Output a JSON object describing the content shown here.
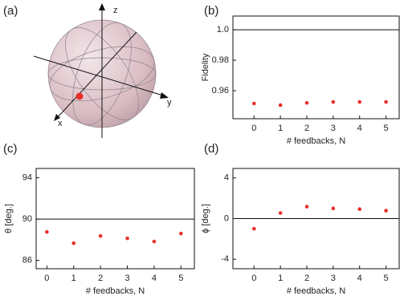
{
  "chart_data": [
    {
      "type": "bloch",
      "label": "(a)",
      "axis_labels": {
        "x": "x",
        "y": "y",
        "z": "z"
      }
    },
    {
      "type": "scatter",
      "label": "(b)",
      "ylabel": "Fidelity",
      "xlabel": "# feedbacks, N",
      "x": [
        0,
        1,
        2,
        3,
        4,
        5
      ],
      "values": [
        0.9516,
        0.9505,
        0.952,
        0.9526,
        0.9526,
        0.9526
      ],
      "color": "#e8302a",
      "xlim": [
        -0.8,
        5.5
      ],
      "ylim": [
        0.9416,
        1.009
      ],
      "xticks": [
        0,
        1,
        2,
        3,
        4,
        5
      ],
      "yticks": [
        0.96,
        0.98,
        {
          "value": 1,
          "label": "1.0"
        }
      ],
      "hline": 1
    },
    {
      "type": "scatter",
      "label": "(c)",
      "ylabel": "θ [deg.]",
      "xlabel": "# feedbacks, N",
      "x": [
        0,
        1,
        2,
        3,
        4,
        5
      ],
      "values": [
        88.76,
        87.67,
        88.37,
        88.14,
        87.83,
        88.6
      ],
      "color": "#e8302a",
      "xlim": [
        -0.4,
        5.5
      ],
      "ylim": [
        85.2,
        94.9
      ],
      "xticks": [
        0,
        1,
        2,
        3,
        4,
        5
      ],
      "yticks": [
        86,
        90,
        94
      ],
      "hline": 90
    },
    {
      "type": "scatter",
      "label": "(d)",
      "ylabel": "ϕ [deg.]",
      "xlabel": "# feedbacks, N",
      "x": [
        0,
        1,
        2,
        3,
        4,
        5
      ],
      "values": [
        -1.0,
        0.55,
        1.17,
        1.0,
        0.93,
        0.78
      ],
      "color": "#e8302a",
      "xlim": [
        -0.8,
        5.5
      ],
      "ylim": [
        -4.93,
        4.93
      ],
      "xticks": [
        0,
        1,
        2,
        3,
        4,
        5
      ],
      "yticks": [
        -4,
        0,
        4
      ],
      "hline": 0
    }
  ]
}
